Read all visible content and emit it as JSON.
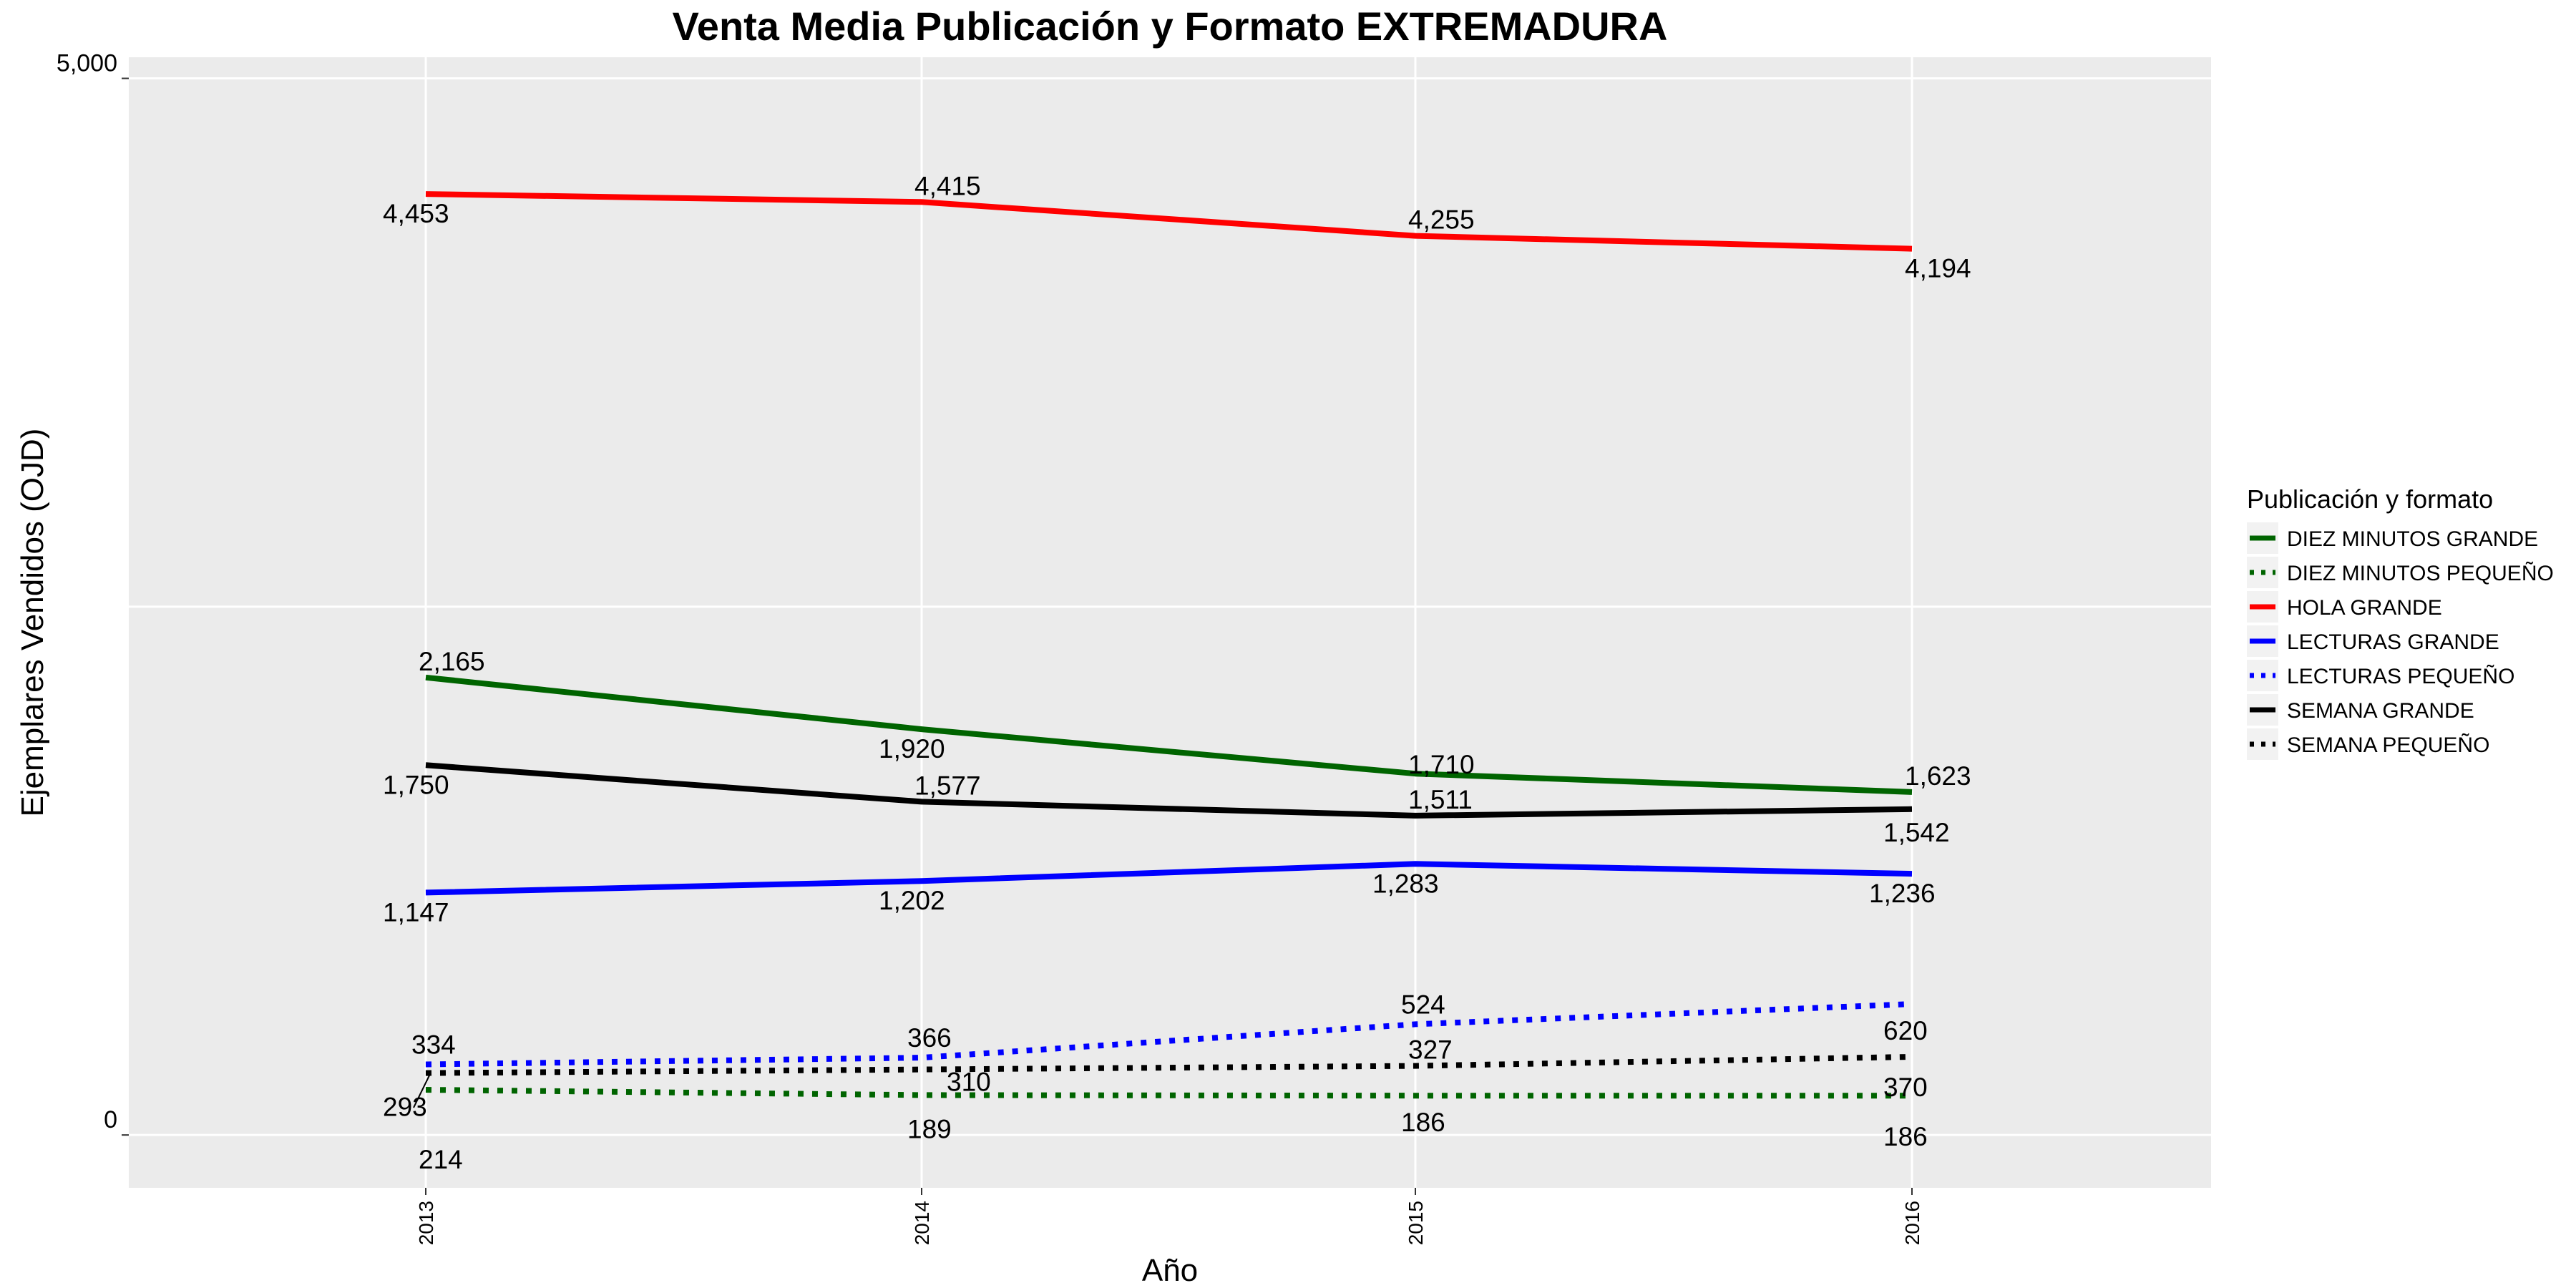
{
  "chart_data": {
    "type": "line",
    "title": "Venta Media Publicación y Formato  EXTREMADURA",
    "xlabel": "Año",
    "ylabel": "Ejemplares Vendidos (OJD)",
    "x": [
      "2013",
      "2014",
      "2015",
      "2016"
    ],
    "ylim": [
      -250,
      5100
    ],
    "y_ticks": [
      0,
      5000
    ],
    "y_tick_labels": [
      "0",
      "5,000"
    ],
    "grid": true,
    "legend_title": "Publicación y formato",
    "legend_position": "right",
    "series": [
      {
        "name": "DIEZ MINUTOS GRANDE",
        "color": "#006400",
        "style": "solid",
        "values": [
          2165,
          1920,
          1710,
          1623
        ]
      },
      {
        "name": "DIEZ MINUTOS PEQUEÑO",
        "color": "#006400",
        "style": "dotted",
        "values": [
          214,
          189,
          186,
          186
        ]
      },
      {
        "name": "HOLA GRANDE",
        "color": "#ff0000",
        "style": "solid",
        "values": [
          4453,
          4415,
          4255,
          4194
        ]
      },
      {
        "name": "LECTURAS GRANDE",
        "color": "#0000ff",
        "style": "solid",
        "values": [
          1147,
          1202,
          1283,
          1236
        ]
      },
      {
        "name": "LECTURAS PEQUEÑO",
        "color": "#0000ff",
        "style": "dotted",
        "values": [
          334,
          366,
          524,
          620
        ]
      },
      {
        "name": "SEMANA GRANDE",
        "color": "#000000",
        "style": "solid",
        "values": [
          1750,
          1577,
          1511,
          1542
        ]
      },
      {
        "name": "SEMANA PEQUEÑO",
        "color": "#000000",
        "style": "dotted",
        "values": [
          293,
          310,
          327,
          370
        ]
      }
    ],
    "data_labels": [
      {
        "series": 2,
        "i": 0,
        "text": "4,453"
      },
      {
        "series": 2,
        "i": 1,
        "text": "4,415"
      },
      {
        "series": 2,
        "i": 2,
        "text": "4,255"
      },
      {
        "series": 2,
        "i": 3,
        "text": "4,194"
      },
      {
        "series": 0,
        "i": 0,
        "text": "2,165"
      },
      {
        "series": 0,
        "i": 1,
        "text": "1,920"
      },
      {
        "series": 0,
        "i": 2,
        "text": "1,710"
      },
      {
        "series": 0,
        "i": 3,
        "text": "1,623"
      },
      {
        "series": 5,
        "i": 0,
        "text": "1,750"
      },
      {
        "series": 5,
        "i": 1,
        "text": "1,577"
      },
      {
        "series": 5,
        "i": 2,
        "text": "1,511"
      },
      {
        "series": 5,
        "i": 3,
        "text": "1,542"
      },
      {
        "series": 3,
        "i": 0,
        "text": "1,147"
      },
      {
        "series": 3,
        "i": 1,
        "text": "1,202"
      },
      {
        "series": 3,
        "i": 2,
        "text": "1,283"
      },
      {
        "series": 3,
        "i": 3,
        "text": "1,236"
      },
      {
        "series": 4,
        "i": 0,
        "text": "334"
      },
      {
        "series": 4,
        "i": 1,
        "text": "366"
      },
      {
        "series": 4,
        "i": 2,
        "text": "524"
      },
      {
        "series": 4,
        "i": 3,
        "text": "620"
      },
      {
        "series": 6,
        "i": 0,
        "text": "293"
      },
      {
        "series": 6,
        "i": 1,
        "text": "310"
      },
      {
        "series": 6,
        "i": 2,
        "text": "327"
      },
      {
        "series": 6,
        "i": 3,
        "text": "370"
      },
      {
        "series": 1,
        "i": 0,
        "text": "214"
      },
      {
        "series": 1,
        "i": 1,
        "text": "189"
      },
      {
        "series": 1,
        "i": 2,
        "text": "186"
      },
      {
        "series": 1,
        "i": 3,
        "text": "186"
      }
    ]
  }
}
